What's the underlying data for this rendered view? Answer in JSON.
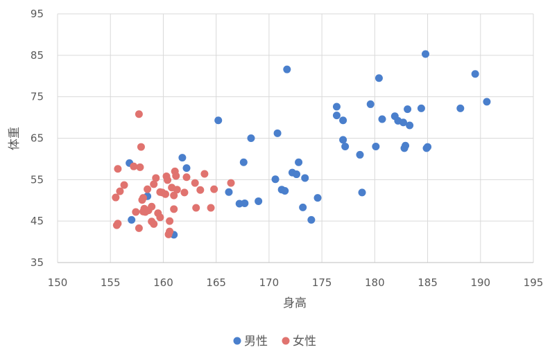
{
  "chart_data": {
    "type": "scatter",
    "title": "",
    "xlabel": "身高",
    "ylabel": "体重",
    "xlim": [
      150,
      195
    ],
    "ylim": [
      35,
      95
    ],
    "xticks": [
      150,
      155,
      160,
      165,
      170,
      175,
      180,
      185,
      190,
      195
    ],
    "yticks": [
      35,
      45,
      55,
      65,
      75,
      85,
      95
    ],
    "grid": "both",
    "legend_position": "bottom",
    "series": [
      {
        "name": "男性",
        "color": "#4a7fcc",
        "points": [
          [
            156.8,
            59.0
          ],
          [
            157.0,
            45.3
          ],
          [
            158.5,
            51.0
          ],
          [
            161.0,
            41.7
          ],
          [
            161.8,
            60.3
          ],
          [
            162.2,
            57.8
          ],
          [
            165.2,
            69.3
          ],
          [
            166.2,
            52.0
          ],
          [
            167.2,
            49.2
          ],
          [
            167.6,
            59.2
          ],
          [
            167.7,
            49.3
          ],
          [
            168.3,
            65.0
          ],
          [
            169.0,
            49.8
          ],
          [
            170.6,
            55.1
          ],
          [
            170.8,
            66.2
          ],
          [
            171.2,
            52.6
          ],
          [
            171.5,
            52.3
          ],
          [
            171.7,
            81.6
          ],
          [
            172.2,
            56.7
          ],
          [
            172.6,
            56.3
          ],
          [
            172.8,
            59.2
          ],
          [
            173.2,
            48.3
          ],
          [
            173.4,
            55.4
          ],
          [
            174.0,
            45.3
          ],
          [
            174.6,
            50.6
          ],
          [
            176.4,
            72.6
          ],
          [
            176.4,
            70.5
          ],
          [
            177.0,
            69.3
          ],
          [
            177.0,
            64.6
          ],
          [
            177.2,
            63.0
          ],
          [
            178.6,
            61.0
          ],
          [
            178.8,
            51.9
          ],
          [
            179.6,
            73.2
          ],
          [
            180.1,
            63.0
          ],
          [
            180.4,
            79.5
          ],
          [
            180.7,
            69.6
          ],
          [
            181.9,
            70.3
          ],
          [
            182.2,
            69.2
          ],
          [
            182.7,
            68.8
          ],
          [
            182.8,
            62.6
          ],
          [
            182.9,
            63.2
          ],
          [
            183.1,
            72.0
          ],
          [
            183.3,
            68.1
          ],
          [
            184.4,
            72.2
          ],
          [
            184.8,
            85.3
          ],
          [
            184.9,
            62.6
          ],
          [
            185.0,
            62.9
          ],
          [
            188.1,
            72.2
          ],
          [
            189.5,
            80.5
          ],
          [
            190.6,
            73.8
          ]
        ]
      },
      {
        "name": "女性",
        "color": "#e0736f",
        "points": [
          [
            155.5,
            50.7
          ],
          [
            155.6,
            44.0
          ],
          [
            155.7,
            44.4
          ],
          [
            155.7,
            57.6
          ],
          [
            155.9,
            52.2
          ],
          [
            156.3,
            53.7
          ],
          [
            157.2,
            58.2
          ],
          [
            157.4,
            47.2
          ],
          [
            157.7,
            70.8
          ],
          [
            157.7,
            43.3
          ],
          [
            157.8,
            58.0
          ],
          [
            157.9,
            62.9
          ],
          [
            158.0,
            50.1
          ],
          [
            158.1,
            47.3
          ],
          [
            158.1,
            50.6
          ],
          [
            158.2,
            48.0
          ],
          [
            158.3,
            47.2
          ],
          [
            158.5,
            52.7
          ],
          [
            158.6,
            47.6
          ],
          [
            158.9,
            48.5
          ],
          [
            158.9,
            44.9
          ],
          [
            159.1,
            44.3
          ],
          [
            159.1,
            53.9
          ],
          [
            159.3,
            55.4
          ],
          [
            159.5,
            46.9
          ],
          [
            159.7,
            52.0
          ],
          [
            159.7,
            45.9
          ],
          [
            159.9,
            51.9
          ],
          [
            160.2,
            51.5
          ],
          [
            160.3,
            55.8
          ],
          [
            160.4,
            54.9
          ],
          [
            160.5,
            41.8
          ],
          [
            160.6,
            42.5
          ],
          [
            160.6,
            45.0
          ],
          [
            160.8,
            53.1
          ],
          [
            161.0,
            51.2
          ],
          [
            161.0,
            47.9
          ],
          [
            161.1,
            57.0
          ],
          [
            161.2,
            55.9
          ],
          [
            161.3,
            52.6
          ],
          [
            162.0,
            51.9
          ],
          [
            162.2,
            55.6
          ],
          [
            163.0,
            54.2
          ],
          [
            163.1,
            48.2
          ],
          [
            163.5,
            52.5
          ],
          [
            163.9,
            56.4
          ],
          [
            164.5,
            48.2
          ],
          [
            164.8,
            52.7
          ],
          [
            166.4,
            54.2
          ]
        ]
      }
    ]
  }
}
